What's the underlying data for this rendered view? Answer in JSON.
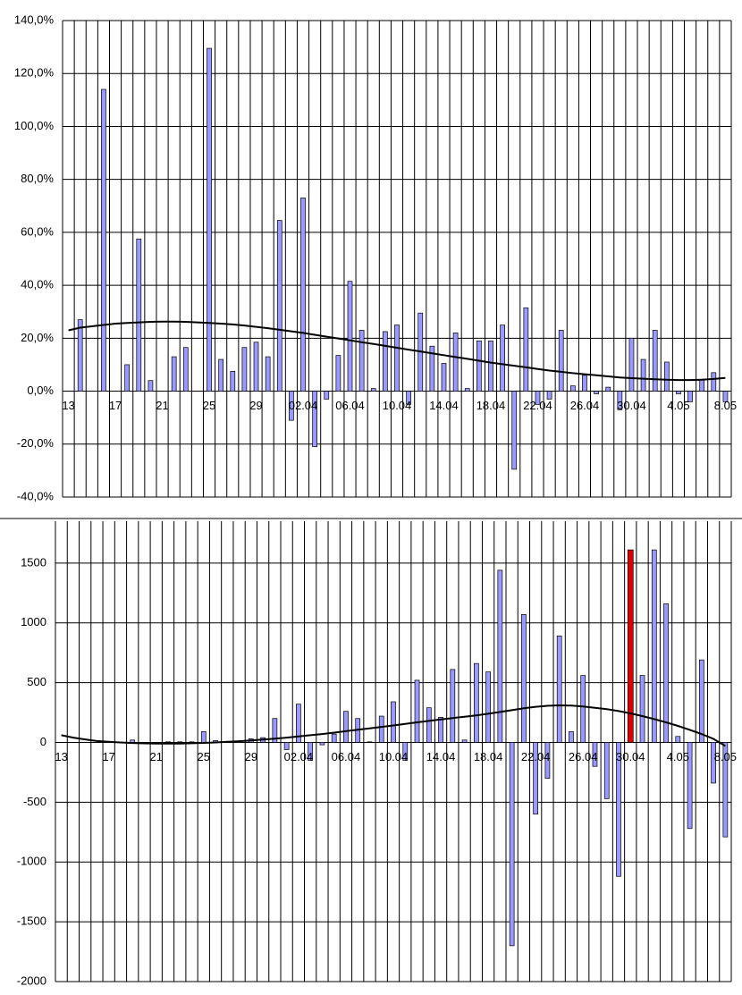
{
  "chart_data": [
    {
      "type": "bar",
      "categories": [
        "13",
        null,
        null,
        null,
        "17",
        null,
        null,
        null,
        "21",
        null,
        null,
        null,
        "25",
        null,
        null,
        null,
        "29",
        null,
        null,
        null,
        "02.04",
        null,
        null,
        null,
        "06.04",
        null,
        null,
        null,
        "10.04",
        null,
        null,
        null,
        "14.04",
        null,
        null,
        null,
        "18.04",
        null,
        null,
        null,
        "22.04",
        null,
        null,
        null,
        "26.04",
        null,
        null,
        null,
        "30.04",
        null,
        null,
        null,
        "4.05",
        null,
        null,
        null,
        "8.05"
      ],
      "values": [
        null,
        27,
        null,
        114,
        null,
        10,
        57.5,
        4,
        null,
        13,
        16.5,
        null,
        129.5,
        12,
        7.5,
        16.5,
        18.5,
        13,
        64.5,
        -11,
        73,
        -21,
        -3,
        13.5,
        41.5,
        23,
        1,
        22.5,
        25,
        -5,
        29.5,
        17,
        10.5,
        22,
        1,
        19,
        19,
        25,
        -29.5,
        31.5,
        -5,
        -3,
        23,
        2,
        6,
        -1,
        1.5,
        -7,
        20,
        12,
        23,
        11,
        -1,
        -4,
        4.5,
        7,
        -4
      ],
      "color": "#9999ff",
      "trend": {
        "color": "#000000",
        "values": [
          23,
          24,
          24.5,
          25,
          25.5,
          25.8,
          26,
          26.2,
          26.3,
          26.3,
          26.2,
          26,
          25.8,
          25.5,
          25.2,
          24.8,
          24.3,
          23.8,
          23.2,
          22.6,
          22,
          21.3,
          20.6,
          19.9,
          19.2,
          18.5,
          17.8,
          17.1,
          16.4,
          15.7,
          15,
          14.3,
          13.6,
          12.9,
          12.2,
          11.5,
          10.8,
          10.2,
          9.6,
          9,
          8.4,
          7.8,
          7.3,
          6.8,
          6.4,
          6,
          5.6,
          5.2,
          4.9,
          4.7,
          4.5,
          4.3,
          4.2,
          4.2,
          4.3,
          4.6,
          5
        ]
      },
      "ylim": [
        -40,
        140
      ],
      "yticks": [
        {
          "value": -40,
          "label": "-40,0%"
        },
        {
          "value": -20,
          "label": "-20,0%"
        },
        {
          "value": 0,
          "label": "0,0%"
        },
        {
          "value": 20,
          "label": "20,0%"
        },
        {
          "value": 40,
          "label": "40,0%"
        },
        {
          "value": 60,
          "label": "60,0%"
        },
        {
          "value": 80,
          "label": "80,0%"
        },
        {
          "value": 100,
          "label": "100,0%"
        },
        {
          "value": 120,
          "label": "120,0%"
        },
        {
          "value": 140,
          "label": "140,0%"
        }
      ],
      "grid": true
    },
    {
      "type": "bar",
      "categories": [
        "13",
        null,
        null,
        null,
        "17",
        null,
        null,
        null,
        "21",
        null,
        null,
        null,
        "25",
        null,
        null,
        null,
        "29",
        null,
        null,
        null,
        "02.04",
        null,
        null,
        null,
        "06.04",
        null,
        null,
        null,
        "10.04",
        null,
        null,
        null,
        "14.04",
        null,
        null,
        null,
        "18.04",
        null,
        null,
        null,
        "22.04",
        null,
        null,
        null,
        "26.04",
        null,
        null,
        null,
        "30.04",
        null,
        null,
        null,
        "4.05",
        null,
        null,
        null,
        "8.05"
      ],
      "values": [
        null,
        null,
        null,
        null,
        null,
        null,
        20,
        null,
        null,
        5,
        5,
        5,
        90,
        15,
        null,
        10,
        30,
        40,
        200,
        -60,
        320,
        -150,
        -20,
        70,
        260,
        200,
        5,
        220,
        340,
        -150,
        520,
        290,
        210,
        610,
        20,
        660,
        590,
        1440,
        -1700,
        1070,
        -600,
        -300,
        890,
        90,
        560,
        -200,
        -470,
        -1120,
        1610,
        560,
        1610,
        1160,
        50,
        -720,
        690,
        -340,
        -790
      ],
      "color": "#9999ff",
      "highlight_index": 48,
      "highlight_color": "#dd0000",
      "trend": {
        "color": "#000000",
        "values": [
          60,
          40,
          25,
          12,
          5,
          0,
          -5,
          -8,
          -10,
          -10,
          -9,
          -7,
          -4,
          0,
          5,
          10,
          17,
          24,
          32,
          40,
          50,
          60,
          70,
          82,
          94,
          106,
          118,
          130,
          142,
          155,
          168,
          180,
          192,
          204,
          215,
          226,
          240,
          255,
          270,
          285,
          298,
          306,
          310,
          308,
          300,
          290,
          278,
          262,
          243,
          220,
          195,
          168,
          138,
          105,
          70,
          30,
          -30
        ]
      },
      "ylim": [
        -2000,
        1850
      ],
      "yticks": [
        -2000,
        -1500,
        -1000,
        -500,
        0,
        500,
        1000,
        1500
      ],
      "grid": true
    }
  ]
}
